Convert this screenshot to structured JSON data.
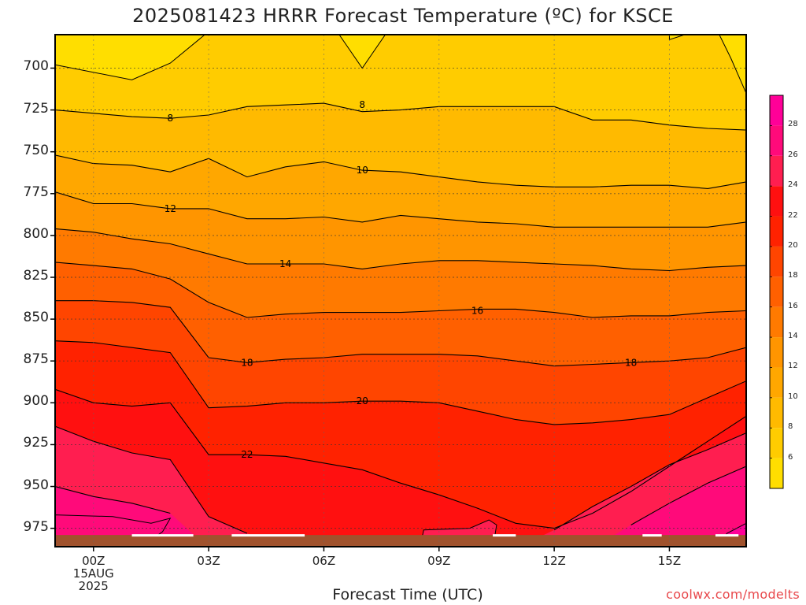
{
  "title": "2025081423 HRRR Forecast Temperature (ºC) for KSCE",
  "xlabel": "Forecast Time (UTC)",
  "credit": "coolwx.com/modelts",
  "y_ticks": [
    "700",
    "725",
    "750",
    "775",
    "800",
    "825",
    "850",
    "875",
    "900",
    "925",
    "950",
    "975"
  ],
  "x_ticks": [
    {
      "label": "00Z",
      "sub": [
        "15AUG",
        "2025"
      ]
    },
    {
      "label": "03Z",
      "sub": []
    },
    {
      "label": "06Z",
      "sub": []
    },
    {
      "label": "09Z",
      "sub": []
    },
    {
      "label": "12Z",
      "sub": []
    },
    {
      "label": "15Z",
      "sub": []
    }
  ],
  "colorbar_ticks": [
    "6",
    "8",
    "10",
    "12",
    "14",
    "16",
    "18",
    "20",
    "22",
    "24",
    "26",
    "28"
  ],
  "chart_data": {
    "type": "heatmap",
    "subtype": "time-height filled contour",
    "title": "2025081423 HRRR Forecast Temperature (ºC) for KSCE",
    "xlabel": "Forecast Time (UTC)",
    "ylabel": "",
    "x_hours": [
      -1,
      0,
      1,
      2,
      3,
      4,
      5,
      6,
      7,
      8,
      9,
      10,
      11,
      12,
      13,
      14,
      15,
      16,
      17
    ],
    "xlim_hours": [
      -1,
      17
    ],
    "ylim_hpa": [
      680,
      986
    ],
    "y_inverted": true,
    "ground_level_hpa": 979,
    "contour_interval": 2,
    "contour_labels": [
      "8",
      "10",
      "12",
      "14",
      "16",
      "18",
      "20",
      "22"
    ],
    "contours": [
      {
        "level": 8,
        "p": [
          725,
          727,
          729,
          730,
          728,
          723,
          722,
          721,
          726,
          725,
          723,
          723,
          723,
          723,
          731,
          731,
          734,
          736,
          737
        ]
      },
      {
        "level": 10,
        "p": [
          752,
          757,
          758,
          762,
          754,
          765,
          759,
          756,
          761,
          762,
          765,
          768,
          770,
          771,
          771,
          770,
          770,
          772,
          768
        ]
      },
      {
        "level": 12,
        "p": [
          774,
          781,
          781,
          784,
          784,
          790,
          790,
          789,
          792,
          788,
          790,
          792,
          793,
          795,
          795,
          795,
          795,
          795,
          792
        ]
      },
      {
        "level": 14,
        "p": [
          796,
          798,
          802,
          805,
          811,
          817,
          817,
          817,
          820,
          817,
          815,
          815,
          816,
          817,
          818,
          820,
          821,
          819,
          818
        ]
      },
      {
        "level": 16,
        "p": [
          816,
          818,
          820,
          826,
          840,
          849,
          847,
          846,
          846,
          846,
          845,
          844,
          844,
          846,
          849,
          848,
          848,
          846,
          845
        ]
      },
      {
        "level": 18,
        "p": [
          839,
          839,
          840,
          843,
          873,
          876,
          874,
          873,
          871,
          871,
          871,
          872,
          875,
          878,
          877,
          876,
          875,
          873,
          867
        ]
      },
      {
        "level": 20,
        "p": [
          863,
          864,
          867,
          870,
          903,
          902,
          900,
          900,
          899,
          899,
          900,
          905,
          910,
          913,
          912,
          910,
          907,
          897,
          887
        ]
      },
      {
        "level": 22,
        "p": [
          892,
          900,
          902,
          900,
          931,
          931,
          932,
          936,
          940,
          948,
          955,
          963,
          972,
          975,
          966,
          953,
          938,
          923,
          908
        ]
      },
      {
        "level": 24,
        "p": [
          914,
          923,
          930,
          934,
          968,
          978,
          null,
          null,
          null,
          null,
          null,
          null,
          null,
          976,
          962,
          950,
          937,
          928,
          918
        ]
      },
      {
        "level": 26,
        "p": [
          950,
          956,
          960,
          966,
          null,
          null,
          null,
          null,
          null,
          null,
          null,
          null,
          null,
          null,
          null,
          973,
          960,
          948,
          938
        ]
      }
    ],
    "colorbar": {
      "bounds": [
        4,
        6,
        8,
        10,
        12,
        14,
        16,
        18,
        20,
        22,
        24,
        26,
        28,
        30
      ],
      "colors": [
        "#FFDE00",
        "#FFCC00",
        "#FFBA00",
        "#FFA700",
        "#FF9500",
        "#FF7A00",
        "#FF6000",
        "#FF4500",
        "#FF2200",
        "#FF1010",
        "#FF1E50",
        "#FF0A7A",
        "#FF0098"
      ]
    },
    "ground_color": "#a0522d"
  }
}
